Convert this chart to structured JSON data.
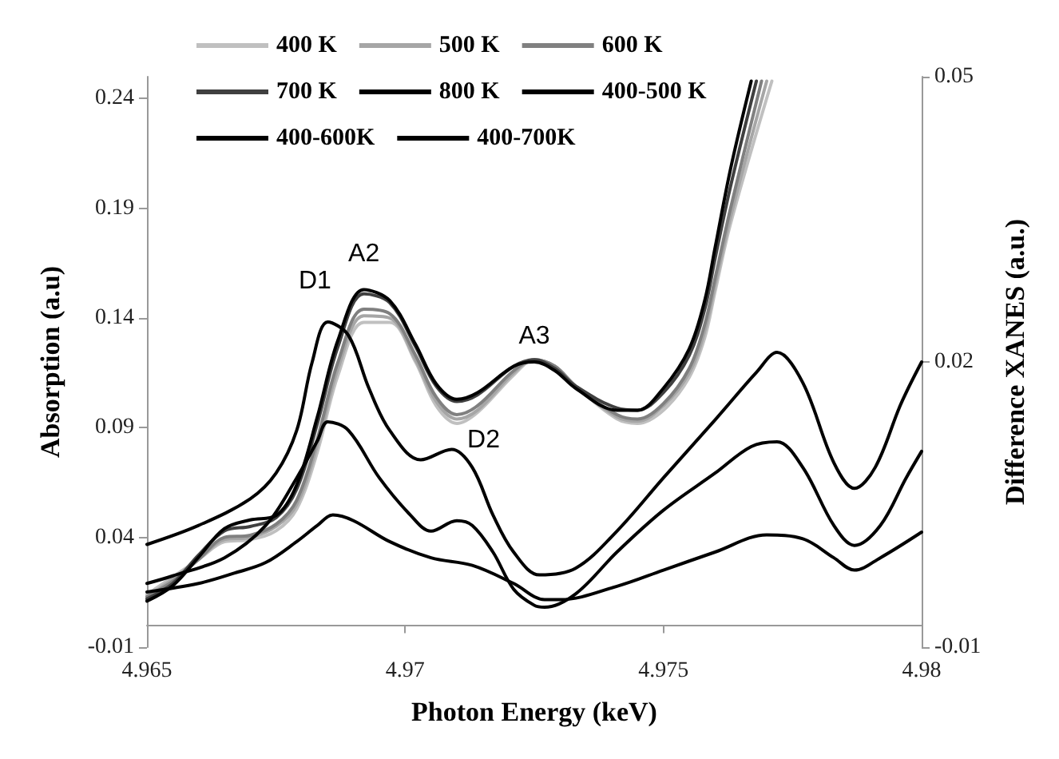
{
  "chart_data": {
    "type": "line",
    "xlabel": "Photon Energy (keV)",
    "ylabel": "Absorption (a.u)",
    "y2label": "Difference XANES (a.u.)",
    "xlim": [
      4.965,
      4.98
    ],
    "xticks": [
      4.965,
      4.97,
      4.975,
      4.98
    ],
    "ylim": [
      -0.01,
      0.25
    ],
    "yticks": [
      -0.01,
      0.04,
      0.09,
      0.14,
      0.19,
      0.24
    ],
    "y2lim": [
      -0.01,
      0.05
    ],
    "y2ticks": [
      -0.01,
      0.02,
      0.05
    ],
    "grid": false,
    "legend": "top left",
    "marker": "none",
    "line_style": "solid",
    "annotations": [
      {
        "text": "D1",
        "x": 4.9685,
        "y": 0.138
      },
      {
        "text": "A2",
        "x": 4.9692,
        "y": 0.153
      },
      {
        "text": "A3",
        "x": 4.9725,
        "y": 0.12
      },
      {
        "text": "D2",
        "x": 4.9709,
        "y": 0.08
      }
    ],
    "series": [
      {
        "name": "400 K",
        "color": "#c0c0c0",
        "x": [
          4.965,
          4.9655,
          4.966,
          4.9665,
          4.967,
          4.9675,
          4.9679,
          4.9683,
          4.9687,
          4.9692,
          4.9697,
          4.9702,
          4.9706,
          4.971,
          4.9714,
          4.9721,
          4.9725,
          4.9729,
          4.9733,
          4.9741,
          4.9745,
          4.975,
          4.9755,
          4.9758,
          4.976,
          4.9763,
          4.9771
        ],
        "values": [
          0.014,
          0.022,
          0.03,
          0.038,
          0.039,
          0.043,
          0.053,
          0.079,
          0.114,
          0.138,
          0.138,
          0.12,
          0.1,
          0.092,
          0.097,
          0.114,
          0.121,
          0.118,
          0.109,
          0.094,
          0.092,
          0.098,
          0.113,
          0.131,
          0.152,
          0.183,
          0.248
        ]
      },
      {
        "name": "500 K",
        "color": "#a6a6a6",
        "x": [
          4.965,
          4.9655,
          4.966,
          4.9665,
          4.967,
          4.9675,
          4.9679,
          4.9683,
          4.9687,
          4.9692,
          4.9697,
          4.9702,
          4.9706,
          4.971,
          4.9714,
          4.9721,
          4.9725,
          4.9729,
          4.9733,
          4.9741,
          4.9745,
          4.975,
          4.9755,
          4.9758,
          4.976,
          4.9763,
          4.977
        ],
        "values": [
          0.013,
          0.021,
          0.03,
          0.039,
          0.04,
          0.045,
          0.055,
          0.082,
          0.117,
          0.141,
          0.14,
          0.121,
          0.102,
          0.094,
          0.098,
          0.115,
          0.121,
          0.118,
          0.109,
          0.095,
          0.093,
          0.1,
          0.115,
          0.134,
          0.155,
          0.186,
          0.248
        ]
      },
      {
        "name": "600 K",
        "color": "#808080",
        "x": [
          4.965,
          4.9655,
          4.966,
          4.9665,
          4.967,
          4.9675,
          4.9679,
          4.9683,
          4.9687,
          4.9692,
          4.9697,
          4.9702,
          4.9706,
          4.971,
          4.9714,
          4.9721,
          4.9725,
          4.9729,
          4.9733,
          4.9741,
          4.9745,
          4.975,
          4.9755,
          4.9758,
          4.976,
          4.9763,
          4.9769
        ],
        "values": [
          0.013,
          0.02,
          0.03,
          0.04,
          0.041,
          0.046,
          0.057,
          0.085,
          0.12,
          0.144,
          0.142,
          0.123,
          0.104,
          0.096,
          0.1,
          0.116,
          0.121,
          0.118,
          0.109,
          0.096,
          0.094,
          0.101,
          0.117,
          0.137,
          0.158,
          0.19,
          0.248
        ]
      },
      {
        "name": "700 K",
        "color": "#404040",
        "x": [
          4.965,
          4.9655,
          4.966,
          4.9665,
          4.967,
          4.9675,
          4.9679,
          4.9683,
          4.9687,
          4.9692,
          4.9697,
          4.9702,
          4.9706,
          4.971,
          4.9714,
          4.9721,
          4.9725,
          4.9729,
          4.9733,
          4.9741,
          4.9745,
          4.975,
          4.9755,
          4.9758,
          4.976,
          4.9763,
          4.9768
        ],
        "values": [
          0.012,
          0.019,
          0.032,
          0.043,
          0.045,
          0.049,
          0.062,
          0.092,
          0.127,
          0.151,
          0.147,
          0.127,
          0.109,
          0.102,
          0.105,
          0.118,
          0.121,
          0.117,
          0.109,
          0.099,
          0.098,
          0.106,
          0.123,
          0.144,
          0.167,
          0.2,
          0.248
        ]
      },
      {
        "name": "800 K",
        "color": "#000000",
        "x": [
          4.965,
          4.9655,
          4.966,
          4.9665,
          4.967,
          4.9675,
          4.9679,
          4.9683,
          4.9687,
          4.9692,
          4.9697,
          4.9702,
          4.9706,
          4.971,
          4.9714,
          4.9721,
          4.9725,
          4.9729,
          4.9733,
          4.9741,
          4.9745,
          4.975,
          4.9755,
          4.9758,
          4.976,
          4.9763,
          4.9767
        ],
        "values": [
          0.011,
          0.018,
          0.031,
          0.044,
          0.048,
          0.05,
          0.064,
          0.095,
          0.13,
          0.153,
          0.148,
          0.128,
          0.11,
          0.103,
          0.106,
          0.118,
          0.12,
          0.116,
          0.108,
          0.098,
          0.098,
          0.108,
          0.126,
          0.148,
          0.172,
          0.208,
          0.248
        ]
      },
      {
        "name": "400-500 K",
        "color": "#000000",
        "axis": "y2",
        "x": [
          4.965,
          4.966,
          4.9667,
          4.9673,
          4.9679,
          4.9683,
          4.9686,
          4.969,
          4.9697,
          4.9705,
          4.9713,
          4.9721,
          4.9727,
          4.973,
          4.9741,
          4.975,
          4.976,
          4.977,
          4.9777,
          4.9783,
          4.9787,
          4.9792,
          4.98
        ],
        "values": [
          -0.0042,
          -0.0033,
          -0.0022,
          -0.0011,
          0.0011,
          0.0028,
          0.0039,
          0.0033,
          0.0011,
          -0.0006,
          -0.0014,
          -0.0033,
          -0.005,
          -0.005,
          -0.0036,
          -0.0019,
          0,
          0.0018,
          0.0014,
          -0.0006,
          -0.0019,
          -0.0006,
          0.0021
        ]
      },
      {
        "name": "400-600K",
        "color": "#000000",
        "axis": "y2",
        "x": [
          4.965,
          4.9655,
          4.9665,
          4.9673,
          4.9679,
          4.9683,
          4.9685,
          4.9689,
          4.9695,
          4.9701,
          4.9705,
          4.971,
          4.9713,
          4.9717,
          4.9721,
          4.9725,
          4.9727,
          4.9733,
          4.9741,
          4.975,
          4.976,
          4.9767,
          4.9772,
          4.9777,
          4.9783,
          4.9787,
          4.9792,
          4.9797,
          4.98
        ],
        "values": [
          -0.0033,
          -0.0025,
          -0.0006,
          0.0028,
          0.0078,
          0.0117,
          0.0137,
          0.0128,
          0.0078,
          0.0039,
          0.0022,
          0.0033,
          0.0028,
          0,
          -0.0039,
          -0.0056,
          -0.0058,
          -0.0044,
          0,
          0.0044,
          0.0083,
          0.0111,
          0.0116,
          0.0089,
          0.0028,
          0.0007,
          0.0028,
          0.0078,
          0.0106
        ]
      },
      {
        "name": "400-700K",
        "color": "#000000",
        "axis": "y2",
        "x": [
          4.965,
          4.966,
          4.967,
          4.9675,
          4.9679,
          4.9682,
          4.9685,
          4.9689,
          4.9693,
          4.9697,
          4.9703,
          4.9709,
          4.9713,
          4.9717,
          4.9721,
          4.9726,
          4.9733,
          4.9741,
          4.975,
          4.976,
          4.9768,
          4.9772,
          4.9777,
          4.9783,
          4.9787,
          4.9791,
          4.9796,
          4.98
        ],
        "values": [
          0.0008,
          0.0028,
          0.0056,
          0.0083,
          0.0128,
          0.02,
          0.0242,
          0.0228,
          0.0172,
          0.0128,
          0.0097,
          0.0108,
          0.0089,
          0.0039,
          0,
          -0.0024,
          -0.0017,
          0.0022,
          0.0078,
          0.0139,
          0.0189,
          0.021,
          0.0178,
          0.0094,
          0.0067,
          0.0089,
          0.0156,
          0.02
        ]
      }
    ]
  }
}
